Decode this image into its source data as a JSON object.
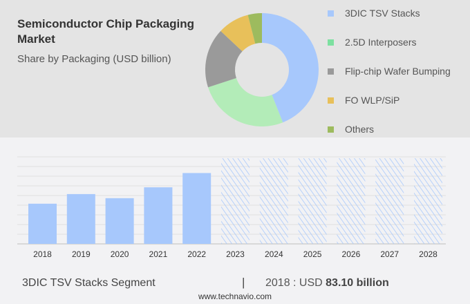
{
  "title": "Semiconductor Chip Packaging Market",
  "subtitle": "Share by Packaging (USD billion)",
  "chart_data": [
    {
      "type": "pie",
      "style": "donut",
      "categories": [
        "3DIC TSV Stacks",
        "2.5D Interposers",
        "Flip-chip Wafer Bumping",
        "FO WLP/SiP",
        "Others"
      ],
      "values": [
        44,
        26,
        17,
        9,
        4
      ],
      "colors": [
        "#a7c8fc",
        "#b3ecb8",
        "#9a9a9a",
        "#e8c05a",
        "#9dbb5e"
      ],
      "legend_colors": [
        "#a7c8fc",
        "#7de0a0",
        "#9a9a9a",
        "#e8c05a",
        "#9dbb5e"
      ],
      "legend": "right"
    },
    {
      "type": "bar",
      "categories": [
        "2018",
        "2019",
        "2020",
        "2021",
        "2022",
        "2023",
        "2024",
        "2025",
        "2026",
        "2027",
        "2028"
      ],
      "values": [
        83.1,
        103,
        94.5,
        117,
        146.5,
        null,
        null,
        null,
        null,
        null,
        null
      ],
      "forecast": [
        "2023",
        "2024",
        "2025",
        "2026",
        "2027",
        "2028"
      ],
      "ylim": [
        0,
        180
      ],
      "grid": true,
      "bar_color": "#a7c8fc"
    }
  ],
  "footer": {
    "segment": "3DIC TSV Stacks Segment",
    "separator": "|",
    "year_label": "2018 : USD ",
    "value": "83.10 billion",
    "url": "www.technavio.com"
  }
}
